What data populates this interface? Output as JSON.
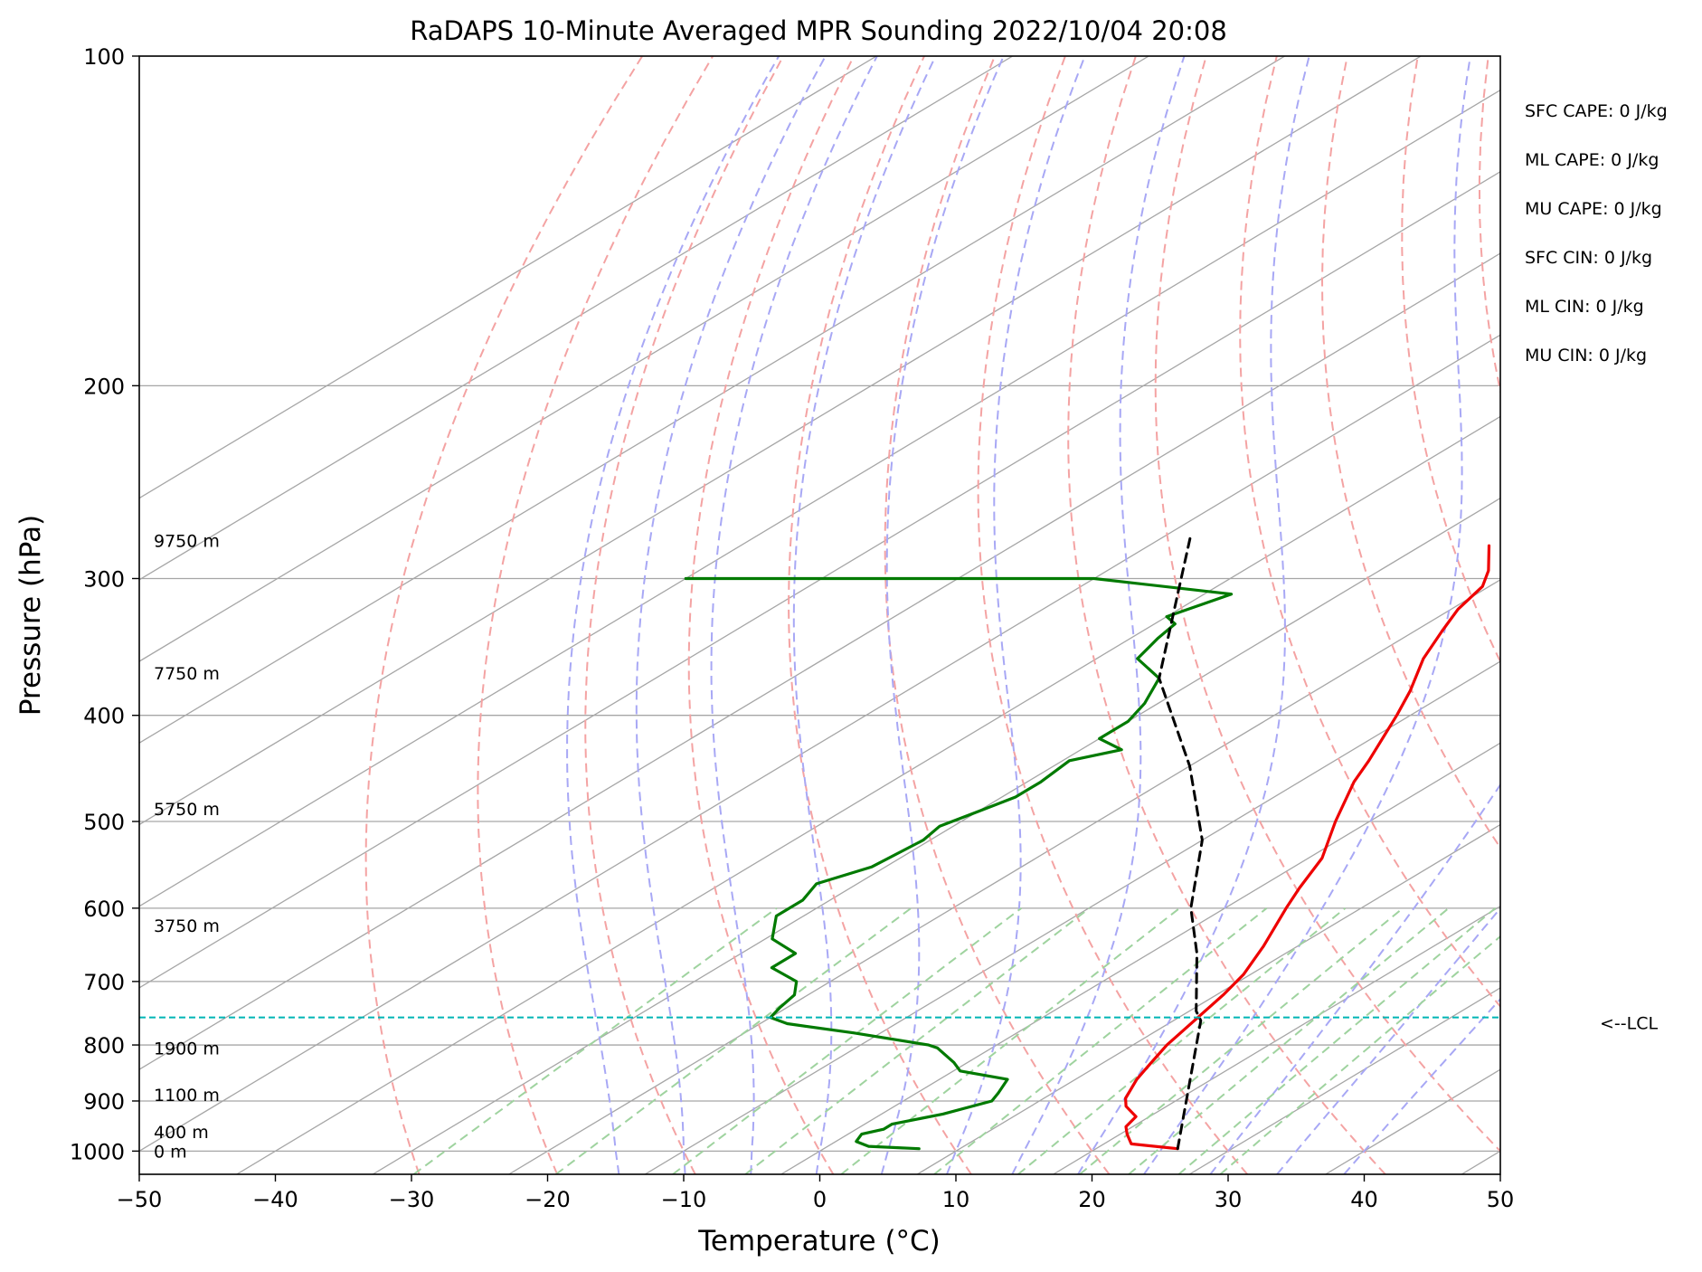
{
  "chart_data": {
    "type": "skew-t",
    "title": "RaDAPS 10-Minute Averaged MPR Sounding 2022/10/04 20:08",
    "xlabel": "Temperature (°C)",
    "ylabel": "Pressure (hPa)",
    "xlim": [
      -50,
      50
    ],
    "ylim": [
      1050,
      100
    ],
    "y_scale": "log",
    "grid": true,
    "x_ticks": [
      "−50",
      "−40",
      "−30",
      "−20",
      "−10",
      "0",
      "10",
      "20",
      "30",
      "40",
      "50"
    ],
    "y_ticks": [
      "100",
      "200",
      "300",
      "400",
      "500",
      "600",
      "700",
      "800",
      "900",
      "1000"
    ],
    "temperature": {
      "color": "#ee0000",
      "points": [
        [
          26.0,
          995
        ],
        [
          22.0,
          985
        ],
        [
          20.5,
          965
        ],
        [
          19.5,
          950
        ],
        [
          19.0,
          930
        ],
        [
          17.0,
          910
        ],
        [
          16.0,
          895
        ],
        [
          14.5,
          860
        ],
        [
          13.5,
          830
        ],
        [
          12.5,
          800
        ],
        [
          10.5,
          720
        ],
        [
          9.5,
          690
        ],
        [
          7.5,
          650
        ],
        [
          4.5,
          600
        ],
        [
          3.0,
          575
        ],
        [
          1.0,
          540
        ],
        [
          -2.5,
          500
        ],
        [
          -6.0,
          460
        ],
        [
          -7.5,
          440
        ],
        [
          -11.0,
          400
        ],
        [
          -13.0,
          380
        ],
        [
          -16.0,
          355
        ],
        [
          -18.0,
          335
        ],
        [
          -19.5,
          320
        ],
        [
          -20.5,
          305
        ],
        [
          -22.0,
          295
        ],
        [
          -25.0,
          280
        ]
      ]
    },
    "dewpoint": {
      "color": "#007a00",
      "points": [
        [
          7.0,
          995
        ],
        [
          3.0,
          990
        ],
        [
          1.5,
          980
        ],
        [
          1.0,
          965
        ],
        [
          2.0,
          955
        ],
        [
          2.0,
          945
        ],
        [
          4.5,
          925
        ],
        [
          6.5,
          900
        ],
        [
          6.0,
          885
        ],
        [
          5.0,
          860
        ],
        [
          0.5,
          845
        ],
        [
          -1.0,
          830
        ],
        [
          -4.0,
          805
        ],
        [
          -5.0,
          800
        ],
        [
          -12.0,
          780
        ],
        [
          -18.0,
          765
        ],
        [
          -20.0,
          755
        ],
        [
          -20.5,
          740
        ],
        [
          -21.0,
          720
        ],
        [
          -22.5,
          700
        ],
        [
          -26.0,
          680
        ],
        [
          -26.0,
          660
        ],
        [
          -29.5,
          640
        ],
        [
          -32.0,
          610
        ],
        [
          -32.0,
          590
        ],
        [
          -33.0,
          570
        ],
        [
          -31.0,
          550
        ],
        [
          -30.5,
          520
        ],
        [
          -31.0,
          505
        ],
        [
          -30.0,
          490
        ],
        [
          -29.0,
          475
        ],
        [
          -29.0,
          460
        ],
        [
          -29.5,
          440
        ],
        [
          -27.0,
          430
        ],
        [
          -30.0,
          420
        ],
        [
          -30.0,
          405
        ],
        [
          -31.0,
          390
        ],
        [
          -33.0,
          370
        ],
        [
          -37.0,
          355
        ],
        [
          -38.0,
          340
        ],
        [
          -38.5,
          330
        ],
        [
          -40.0,
          325
        ],
        [
          -38.0,
          310
        ],
        [
          -50.0,
          300
        ],
        [
          -50.5,
          300
        ],
        [
          -70.0,
          300
        ],
        [
          -80.0,
          300
        ]
      ]
    },
    "parcel": {
      "color": "#000000",
      "points": [
        [
          26.0,
          995
        ],
        [
          12.0,
          760
        ],
        [
          10.5,
          745
        ],
        [
          3.5,
          660
        ],
        [
          -2.5,
          600
        ],
        [
          -10.0,
          520
        ],
        [
          -20.0,
          445
        ],
        [
          -33.0,
          370
        ],
        [
          -48.0,
          275
        ]
      ]
    },
    "lcl": {
      "pressure": 755,
      "label": "<--LCL",
      "color": "#00b5b5"
    },
    "height_labels": [
      {
        "text": "9750 m",
        "p": 277
      },
      {
        "text": "7750 m",
        "p": 366
      },
      {
        "text": "5750 m",
        "p": 487
      },
      {
        "text": "3750 m",
        "p": 622
      },
      {
        "text": "1900 m",
        "p": 805
      },
      {
        "text": "1100 m",
        "p": 888
      },
      {
        "text": "400 m",
        "p": 960
      },
      {
        "text": "0 m",
        "p": 1000
      }
    ],
    "indices": [
      "SFC CAPE: 0 J/kg",
      "ML CAPE: 0 J/kg",
      "MU CAPE: 0 J/kg",
      "SFC CIN: 0 J/kg",
      "ML CIN: 0 J/kg",
      "MU CIN: 0 J/kg"
    ],
    "reference_lines": {
      "isotherm_color": "#a6a6a6",
      "dry_adiabat_color": "#f4a3a3",
      "moist_adiabat_color": "#a8a8f5",
      "mixing_ratio_color": "#9fd39f",
      "mixing_ratio_gkg": [
        0.4,
        1,
        2,
        3,
        5,
        8,
        12,
        16,
        20,
        25,
        30
      ]
    }
  }
}
